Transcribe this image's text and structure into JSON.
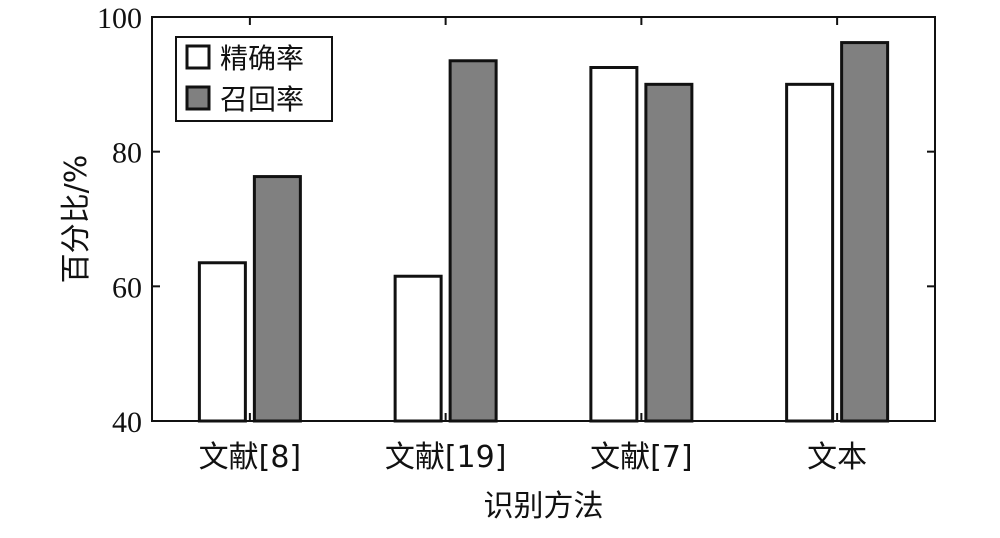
{
  "chart_data": {
    "type": "bar",
    "categories": [
      "文献[8]",
      "文献[19]",
      "文献[7]",
      "文本"
    ],
    "series": [
      {
        "name": "精确率",
        "values": [
          63.5,
          61.5,
          92.5,
          90.0
        ],
        "color": "#ffffff"
      },
      {
        "name": "召回率",
        "values": [
          76.3,
          93.5,
          90.0,
          96.2
        ],
        "color": "#808080"
      }
    ],
    "xlabel": "识别方法",
    "ylabel": "百分比/%",
    "ylim": [
      40,
      100
    ],
    "yticks": [
      40,
      60,
      80,
      100
    ],
    "grid": false,
    "legend_position": "top-left"
  }
}
